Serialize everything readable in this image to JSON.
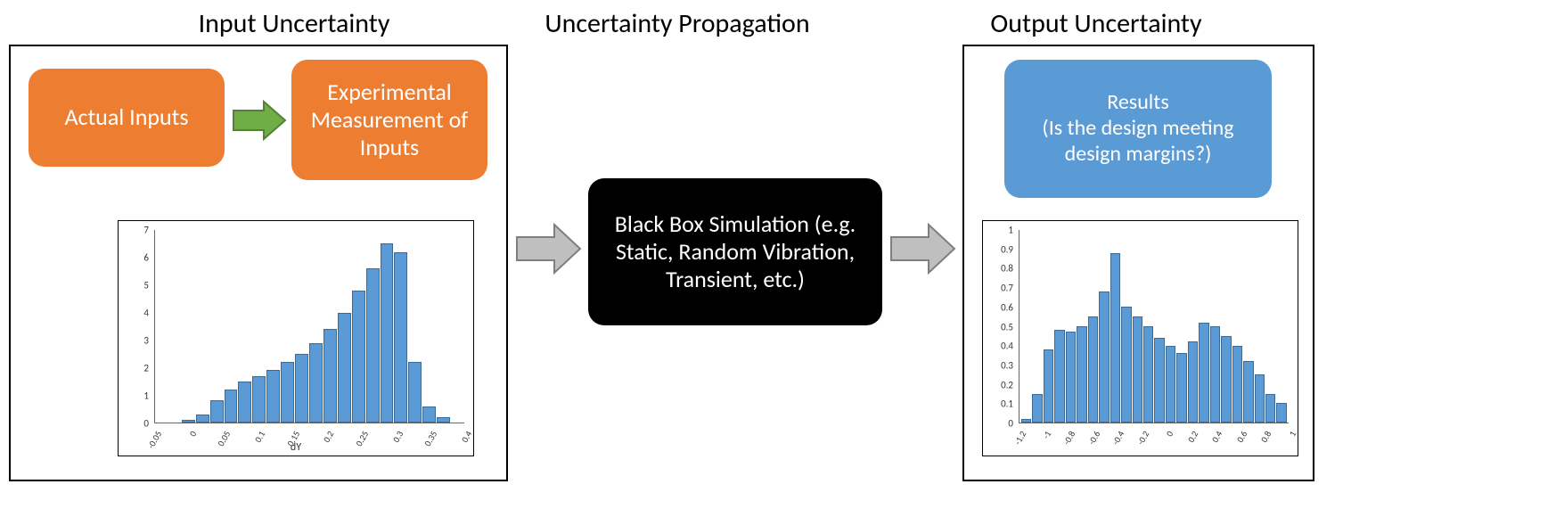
{
  "titles": {
    "input": "Input Uncertainty",
    "propagation": "Uncertainty Propagation",
    "output": "Output Uncertainty"
  },
  "boxes": {
    "actual_inputs": "Actual Inputs",
    "experimental": "Experimental Measurement of Inputs",
    "black_box": "Black Box Simulation (e.g. Static, Random Vibration, Transient, etc.)",
    "results": "Results\n(Is the design meeting design margins?)"
  },
  "colors": {
    "orange": "#ed7d31",
    "green_arrow_fill": "#70ad47",
    "green_arrow_stroke": "#548235",
    "gray_arrow_fill": "#bfbfbf",
    "gray_arrow_stroke": "#7f7f7f",
    "blue": "#5b9bd5",
    "black": "#000000",
    "bar_fill": "#5b9bd5",
    "bar_stroke": "#3d6a95"
  },
  "input_hist": {
    "type": "histogram",
    "xlabel": "dY",
    "ylim": [
      0,
      7
    ],
    "yticks": [
      0,
      1,
      2,
      3,
      4,
      5,
      6,
      7
    ],
    "xticks": [
      "-0.05",
      "0",
      "0.05",
      "0.1",
      "0.15",
      "0.2",
      "0.25",
      "0.3",
      "0.35",
      "0.4"
    ],
    "bin_edges": [
      -0.05,
      0,
      0.05,
      0.1,
      0.15,
      0.2,
      0.25,
      0.3,
      0.35,
      0.4
    ],
    "values": [
      0.0,
      0.0,
      0.1,
      0.3,
      0.8,
      1.2,
      1.5,
      1.7,
      1.9,
      2.2,
      2.5,
      2.9,
      3.4,
      4.0,
      4.8,
      5.6,
      6.5,
      6.2,
      2.2,
      0.6,
      0.2,
      0.0
    ],
    "bar_color": "#5b9bd5",
    "background_color": "#ffffff",
    "axis_color": "#666666",
    "tick_fontsize": 11
  },
  "output_hist": {
    "type": "histogram",
    "xlabel": "",
    "ylim": [
      0,
      1
    ],
    "yticks": [
      0,
      0.1,
      0.2,
      0.3,
      0.4,
      0.5,
      0.6,
      0.7,
      0.8,
      0.9,
      1
    ],
    "xticks": [
      "-1.2",
      "-1",
      "-0.8",
      "-0.6",
      "-0.4",
      "-0.2",
      "0",
      "0.2",
      "0.4",
      "0.6",
      "0.8",
      "1"
    ],
    "bin_edges": [
      -1.2,
      -1,
      -0.8,
      -0.6,
      -0.4,
      -0.2,
      0,
      0.2,
      0.4,
      0.6,
      0.8,
      1
    ],
    "values": [
      0.02,
      0.15,
      0.38,
      0.48,
      0.47,
      0.5,
      0.55,
      0.68,
      0.88,
      0.6,
      0.55,
      0.5,
      0.44,
      0.4,
      0.36,
      0.42,
      0.52,
      0.5,
      0.45,
      0.4,
      0.32,
      0.25,
      0.15,
      0.1
    ],
    "bar_color": "#5b9bd5",
    "background_color": "#ffffff",
    "axis_color": "#666666",
    "tick_fontsize": 11
  },
  "arrows": {
    "green": {
      "fill": "#70ad47",
      "stroke": "#548235",
      "stroke_width": 2
    },
    "gray": {
      "fill": "#bfbfbf",
      "stroke": "#7f7f7f",
      "stroke_width": 2
    }
  }
}
